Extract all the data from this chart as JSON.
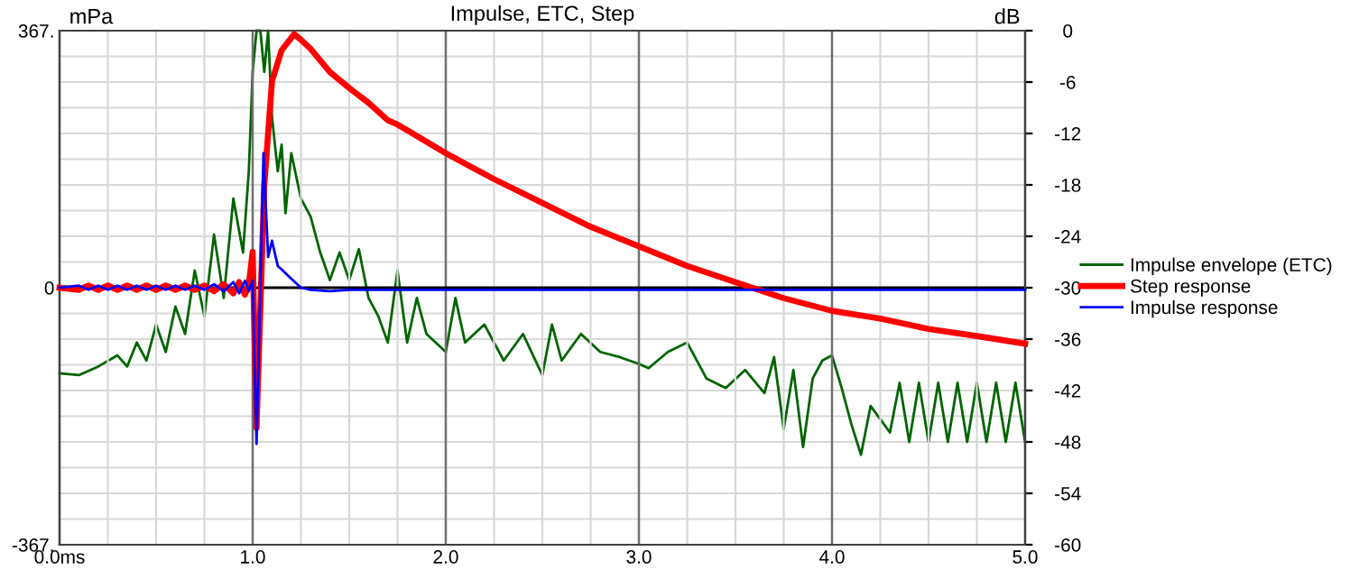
{
  "chart_data": {
    "type": "line",
    "title": "Impulse, ETC, Step",
    "ylabel": "mPa",
    "y2label": "dB",
    "xlim": [
      0,
      5
    ],
    "xticks": [
      {
        "value": 0,
        "label": "0.0ms"
      },
      {
        "value": 1,
        "label": "1.0"
      },
      {
        "value": 2,
        "label": "2.0"
      },
      {
        "value": 3,
        "label": "3.0"
      },
      {
        "value": 4,
        "label": "4.0"
      },
      {
        "value": 5,
        "label": "5.0"
      }
    ],
    "ylim": [
      -367,
      367
    ],
    "yticks": [
      {
        "value": -367,
        "label": "-367."
      },
      0,
      {
        "value": 367,
        "label": "367."
      }
    ],
    "y2lim": [
      -60,
      0
    ],
    "y2ticks": [
      -60,
      -54,
      -48,
      -42,
      -36,
      -30,
      -24,
      -18,
      -12,
      -6,
      0
    ],
    "grid": true,
    "legend": "right",
    "marker": "none",
    "line_style": "solid",
    "ref_lines": [
      {
        "axis": "y",
        "value": 0,
        "color": "#000000"
      }
    ],
    "series": [
      {
        "name": "Impulse envelope (ETC)",
        "color": "#006400",
        "axis": "y2",
        "x": [
          0,
          0.1,
          0.2,
          0.3,
          0.35,
          0.4,
          0.45,
          0.5,
          0.55,
          0.6,
          0.65,
          0.7,
          0.75,
          0.8,
          0.85,
          0.9,
          0.95,
          0.98,
          1.0,
          1.02,
          1.04,
          1.06,
          1.08,
          1.1,
          1.13,
          1.15,
          1.17,
          1.2,
          1.25,
          1.3,
          1.35,
          1.4,
          1.45,
          1.5,
          1.55,
          1.6,
          1.65,
          1.7,
          1.75,
          1.8,
          1.85,
          1.9,
          2.0,
          2.05,
          2.1,
          2.2,
          2.3,
          2.4,
          2.5,
          2.55,
          2.6,
          2.7,
          2.8,
          2.9,
          3.0,
          3.05,
          3.15,
          3.25,
          3.35,
          3.45,
          3.55,
          3.65,
          3.7,
          3.75,
          3.8,
          3.85,
          3.9,
          3.95,
          4.0,
          4.05,
          4.1,
          4.15,
          4.2,
          4.3,
          4.35,
          4.4,
          4.45,
          4.5,
          4.55,
          4.6,
          4.65,
          4.7,
          4.75,
          4.8,
          4.85,
          4.9,
          4.95,
          5.0
        ],
        "values": [
          -40,
          -40.2,
          -39.2,
          -37.9,
          -39.2,
          -36.4,
          -38.5,
          -34.3,
          -37.5,
          -32.2,
          -35.4,
          -28,
          -33.3,
          -23.8,
          -31.2,
          -19.6,
          -25.9,
          -16.4,
          -4.8,
          0,
          0,
          -4.8,
          0,
          -10.1,
          -16.4,
          -13.3,
          -21.3,
          -14.3,
          -19.6,
          -21.7,
          -25.9,
          -29.1,
          -25.9,
          -29.1,
          -25.5,
          -31.2,
          -33.3,
          -36.4,
          -28,
          -36.4,
          -31.2,
          -35.4,
          -37.5,
          -31.2,
          -36.4,
          -34.3,
          -38.5,
          -35.4,
          -40.2,
          -34.3,
          -38.5,
          -35.4,
          -37.5,
          -38.1,
          -38.9,
          -39.4,
          -37.5,
          -36.4,
          -40.6,
          -41.7,
          -39.6,
          -42.3,
          -38.1,
          -46.5,
          -39.6,
          -48.6,
          -40.6,
          -38.5,
          -37.9,
          -41.7,
          -45.9,
          -49.5,
          -43.8,
          -46.9,
          -41.1,
          -48,
          -41.1,
          -48,
          -41.1,
          -48,
          -41.1,
          -48,
          -41.1,
          -48,
          -41.1,
          -48,
          -41.1,
          -48
        ]
      },
      {
        "name": "Step response",
        "color": "#ff0000",
        "x": [
          0,
          0.1,
          0.15,
          0.2,
          0.25,
          0.3,
          0.35,
          0.4,
          0.45,
          0.5,
          0.55,
          0.6,
          0.65,
          0.7,
          0.75,
          0.8,
          0.85,
          0.9,
          0.93,
          0.96,
          0.98,
          1.0,
          1.02,
          1.06,
          1.1,
          1.15,
          1.215,
          1.25,
          1.3,
          1.4,
          1.5,
          1.6,
          1.7,
          1.75,
          1.8,
          2.0,
          2.25,
          2.5,
          2.75,
          3.0,
          3.25,
          3.5,
          3.75,
          4.0,
          4.25,
          4.5,
          4.75,
          5.0
        ],
        "values": [
          0,
          -3,
          3,
          -3,
          3,
          -3,
          3,
          -3,
          3,
          -3,
          3,
          -3,
          3,
          -3,
          3,
          -5,
          5,
          -8,
          8,
          -10,
          5,
          51,
          -200,
          146,
          295,
          339,
          362,
          354,
          341,
          308,
          285,
          264,
          239,
          233,
          225,
          192,
          155,
          121,
          87,
          59,
          31,
          8,
          -15,
          -33,
          -44,
          -59,
          -69,
          -80
        ]
      },
      {
        "name": "Impulse response",
        "color": "#0000ff",
        "x": [
          0,
          0.1,
          0.15,
          0.2,
          0.25,
          0.3,
          0.35,
          0.4,
          0.45,
          0.5,
          0.55,
          0.6,
          0.65,
          0.7,
          0.75,
          0.8,
          0.85,
          0.9,
          0.93,
          0.96,
          0.98,
          1.0,
          1.02,
          1.056,
          1.08,
          1.1,
          1.13,
          1.15,
          1.18,
          1.2,
          1.25,
          1.3,
          1.4,
          1.5,
          2.0,
          3.0,
          4.0,
          5.0
        ],
        "values": [
          0,
          3,
          -3,
          3,
          -3,
          3,
          -3,
          3,
          -3,
          3,
          -3,
          3,
          -3,
          3,
          -3,
          5,
          -5,
          8,
          -8,
          10,
          -5,
          10,
          -223,
          192,
          44,
          67,
          31,
          26,
          18,
          13,
          0,
          -3,
          -5,
          -3,
          -3,
          -3,
          -3,
          -3
        ]
      }
    ]
  }
}
